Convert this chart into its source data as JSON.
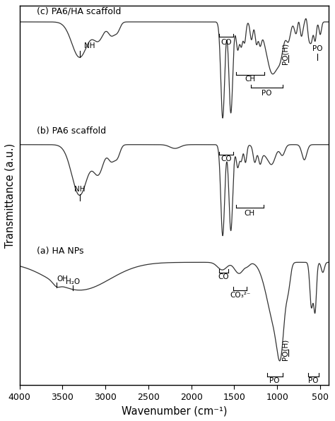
{
  "xlabel": "Wavenumber (cm⁻¹)",
  "ylabel": "Transmittance (a.u.)",
  "x_ticks": [
    4000,
    3500,
    3000,
    2500,
    2000,
    1500,
    1000,
    500
  ],
  "spectra_labels": [
    "(c) PA6/HA scaffold",
    "(b) PA6 scaffold",
    "(a) HA NPs"
  ],
  "background_color": "#ffffff",
  "line_color": "#333333"
}
